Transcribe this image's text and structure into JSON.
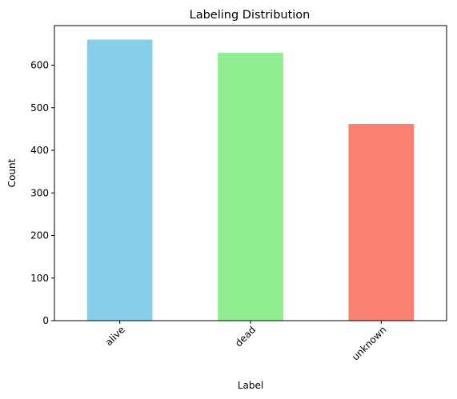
{
  "chart_data": {
    "type": "bar",
    "title": "Labeling Distribution",
    "xlabel": "Label",
    "ylabel": "Count",
    "categories": [
      "alive",
      "dead",
      "unknown"
    ],
    "values": [
      660,
      629,
      462
    ],
    "colors": [
      "#87ceeb",
      "#90ee90",
      "#fa8072"
    ],
    "ylim": [
      0,
      693
    ],
    "yticks": [
      0,
      100,
      200,
      300,
      400,
      500,
      600
    ],
    "xtick_rotation_deg": 45,
    "grid": false,
    "legend": "none"
  }
}
